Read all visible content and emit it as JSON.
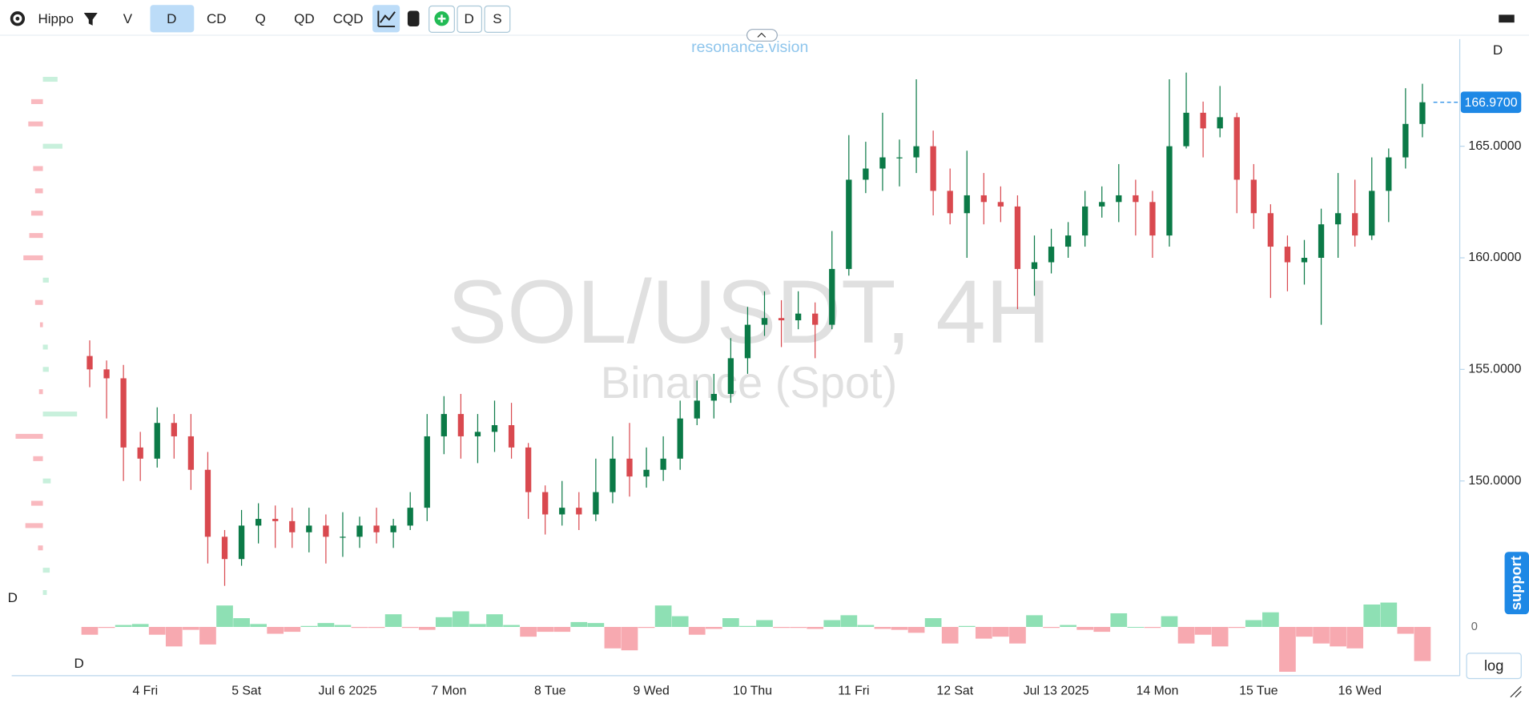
{
  "toolbar": {
    "title": "Hippo",
    "items": [
      "V",
      "D",
      "CD",
      "Q",
      "QD",
      "CQD"
    ],
    "tags": [
      "D",
      "S"
    ]
  },
  "watermark": "resonance.vision",
  "chart_data": {
    "type": "candlestick",
    "title": "SOL/USDT, 4H",
    "subtitle": "Binance (Spot)",
    "categories": [
      null,
      null,
      null,
      "4 Fri",
      null,
      null,
      null,
      null,
      null,
      "5 Sat",
      null,
      null,
      null,
      null,
      null,
      "Jul 6 2025",
      null,
      null,
      null,
      null,
      null,
      "7 Mon",
      null,
      null,
      null,
      null,
      null,
      "8 Tue",
      null,
      null,
      null,
      null,
      null,
      "9 Wed",
      null,
      null,
      null,
      null,
      null,
      "10 Thu",
      null,
      null,
      null,
      null,
      null,
      "11 Fri",
      null,
      null,
      null,
      null,
      null,
      "12 Sat",
      null,
      null,
      null,
      null,
      null,
      "Jul 13 2025",
      null,
      null,
      null,
      null,
      null,
      "14 Mon",
      null,
      null,
      null,
      null,
      null,
      "15 Tue",
      null,
      null,
      null,
      null,
      null,
      "16 Wed",
      null,
      null,
      null,
      null
    ],
    "open": [
      155.6,
      155.0,
      154.6,
      151.5,
      151.0,
      152.6,
      152.0,
      150.5,
      147.5,
      146.5,
      148.0,
      148.3,
      148.2,
      147.7,
      148.0,
      147.5,
      147.5,
      148.0,
      147.7,
      148.0,
      148.8,
      152.0,
      153.0,
      152.0,
      152.2,
      152.5,
      151.5,
      149.5,
      148.5,
      148.8,
      148.5,
      149.5,
      151.0,
      150.2,
      150.5,
      151.0,
      152.8,
      153.6,
      153.9,
      155.5,
      157.0,
      157.3,
      157.2,
      157.5,
      157.0,
      159.5,
      163.5,
      164.0,
      164.5,
      164.5,
      165.0,
      163.0,
      162.0,
      162.8,
      162.5,
      162.3,
      159.5,
      159.8,
      160.5,
      161.0,
      162.3,
      162.5,
      162.8,
      162.5,
      161.0,
      165.0,
      166.5,
      165.8,
      166.3,
      163.5,
      162.0,
      160.5,
      159.8,
      160.0,
      161.5,
      162.0,
      161.0,
      163.0,
      164.5,
      166.0
    ],
    "high": [
      156.3,
      155.4,
      155.2,
      152.2,
      153.3,
      153.0,
      153.0,
      151.3,
      147.8,
      148.7,
      149.0,
      148.9,
      148.8,
      148.8,
      148.5,
      148.6,
      148.4,
      148.8,
      148.3,
      149.5,
      153.0,
      153.8,
      153.9,
      153.0,
      153.6,
      153.5,
      151.7,
      149.8,
      150.0,
      149.5,
      151.0,
      152.0,
      152.6,
      151.5,
      152.0,
      153.6,
      154.5,
      154.8,
      156.4,
      157.8,
      158.5,
      158.1,
      158.5,
      158.0,
      161.2,
      165.5,
      165.2,
      166.5,
      165.3,
      168.0,
      165.7,
      164.0,
      164.8,
      163.8,
      163.2,
      162.8,
      161.0,
      161.3,
      161.6,
      163.0,
      163.2,
      164.2,
      163.5,
      163.0,
      168.0,
      168.3,
      167.0,
      167.7,
      166.5,
      164.2,
      162.4,
      161.0,
      160.8,
      162.2,
      163.8,
      163.5,
      164.5,
      164.9,
      167.6,
      167.8
    ],
    "low": [
      154.2,
      152.8,
      150.0,
      150.0,
      150.6,
      151.0,
      149.6,
      146.3,
      145.3,
      146.2,
      147.2,
      147.0,
      147.0,
      146.8,
      146.3,
      146.6,
      147.0,
      147.2,
      147.0,
      147.8,
      148.2,
      151.2,
      151.0,
      150.8,
      151.3,
      151.0,
      148.3,
      147.6,
      148.0,
      147.8,
      148.2,
      149.0,
      149.3,
      149.7,
      150.0,
      150.5,
      152.5,
      152.8,
      153.5,
      154.8,
      156.5,
      156.0,
      156.8,
      155.5,
      156.8,
      159.2,
      162.9,
      163.0,
      163.2,
      163.8,
      161.9,
      161.5,
      160.0,
      161.5,
      161.6,
      157.7,
      158.3,
      159.3,
      160.0,
      160.5,
      161.8,
      161.6,
      161.0,
      160.0,
      160.5,
      164.9,
      164.5,
      165.4,
      162.0,
      161.3,
      158.2,
      158.5,
      158.8,
      157.0,
      160.0,
      160.5,
      160.8,
      161.6,
      164.0,
      165.4
    ],
    "close": [
      155.0,
      154.6,
      151.5,
      151.0,
      152.6,
      152.0,
      150.5,
      147.5,
      146.5,
      148.0,
      148.3,
      148.2,
      147.7,
      148.0,
      147.5,
      147.5,
      148.0,
      147.7,
      148.0,
      148.8,
      152.0,
      153.0,
      152.0,
      152.2,
      152.5,
      151.5,
      149.5,
      148.5,
      148.8,
      148.5,
      149.5,
      151.0,
      150.2,
      150.5,
      151.0,
      152.8,
      153.6,
      153.9,
      155.5,
      157.0,
      157.3,
      157.2,
      157.5,
      157.0,
      159.5,
      163.5,
      164.0,
      164.5,
      164.5,
      165.0,
      163.0,
      162.0,
      162.8,
      162.5,
      162.3,
      159.5,
      159.8,
      160.5,
      161.0,
      162.3,
      162.5,
      162.8,
      162.5,
      161.0,
      165.0,
      166.5,
      165.8,
      166.3,
      163.5,
      162.0,
      160.5,
      159.8,
      160.0,
      161.5,
      162.0,
      161.0,
      163.0,
      164.5,
      166.0,
      166.97
    ],
    "up_color": "#0b7a47",
    "down_color": "#d9494f",
    "ylim": [
      144.9,
      169.8
    ],
    "yticks": [
      {
        "value": 150,
        "label": "150.0000"
      },
      {
        "value": 155,
        "label": "155.0000"
      },
      {
        "value": 160,
        "label": "160.0000"
      },
      {
        "value": 165,
        "label": "165.0000"
      }
    ],
    "last_price": {
      "value": 166.97,
      "label": "166.9700"
    },
    "delta": {
      "values": [
        -8,
        -1,
        2,
        3,
        -8,
        -20,
        -3,
        -18,
        22,
        9,
        3,
        -7,
        -5,
        1,
        4,
        2,
        -1,
        -1,
        13,
        -1,
        -3,
        10,
        16,
        3,
        13,
        2,
        -10,
        -5,
        -5,
        5,
        4,
        -22,
        -24,
        -1,
        22,
        11,
        -8,
        -2,
        9,
        1,
        7,
        -1,
        -1,
        -2,
        7,
        12,
        2,
        -2,
        -3,
        -6,
        9,
        -17,
        1,
        -12,
        -10,
        -17,
        12,
        -1,
        2,
        -3,
        -5,
        14,
        0,
        -1,
        11,
        -17,
        -8,
        -20,
        -1,
        7,
        15,
        -46,
        -10,
        -17,
        -20,
        -22,
        23,
        25,
        -7,
        -35
      ],
      "ylim": [
        -50,
        25
      ],
      "yticks": [
        0
      ],
      "up_color": "#8ee0b4",
      "down_color": "#f7a9b0"
    },
    "profile": {
      "prices": [
        168,
        167,
        166,
        165,
        164,
        163,
        162,
        161,
        160,
        159,
        158,
        157,
        156,
        155,
        154,
        153,
        152,
        151,
        150,
        149,
        148,
        147,
        146,
        145
      ],
      "values": [
        15,
        -12,
        -15,
        20,
        -10,
        -8,
        -12,
        -14,
        -20,
        6,
        -8,
        -3,
        5,
        6,
        -4,
        35,
        -28,
        -10,
        8,
        -12,
        -18,
        -5,
        7,
        4
      ],
      "up_color": "#c8f0dc",
      "down_color": "#f9b9bf"
    },
    "timeframe_labels": [
      "D",
      "D",
      "D"
    ],
    "log_button": "log",
    "support_tab": "support"
  }
}
